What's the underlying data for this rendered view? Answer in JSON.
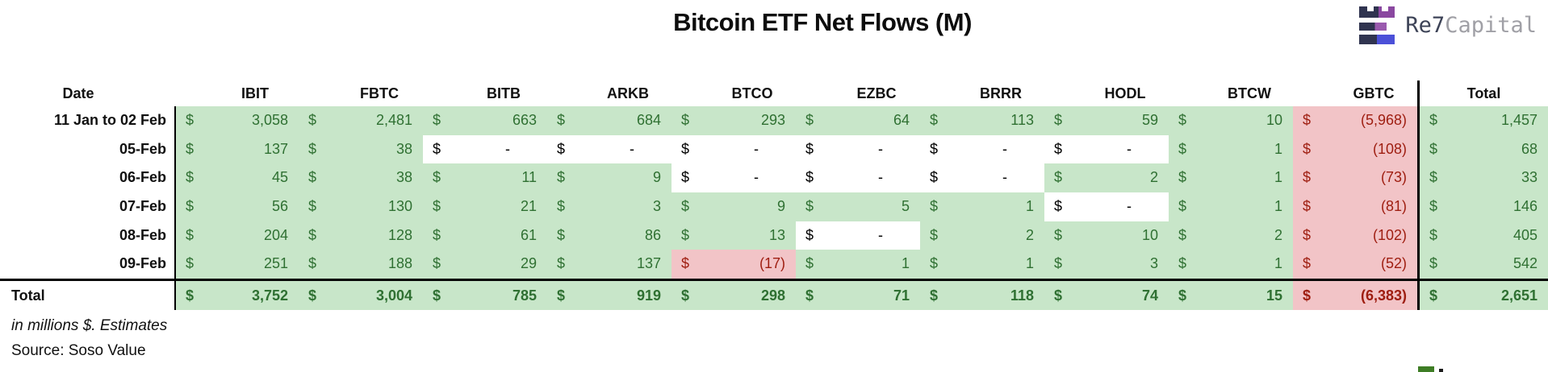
{
  "title": "Bitcoin ETF Net Flows (M)",
  "logo": {
    "text_primary": "Re7",
    "text_secondary": "Capital"
  },
  "chart_data": {
    "type": "table",
    "title": "Bitcoin ETF Net Flows (M)",
    "date_header": "Date",
    "currency": "$",
    "columns": [
      "IBIT",
      "FBTC",
      "BITB",
      "ARKB",
      "BTCO",
      "EZBC",
      "BRRR",
      "HODL",
      "BTCW",
      "GBTC",
      "Total"
    ],
    "rows": [
      {
        "date": "11 Jan to 02 Feb",
        "cells": [
          {
            "value": "3,058",
            "type": "pos"
          },
          {
            "value": "2,481",
            "type": "pos"
          },
          {
            "value": "663",
            "type": "pos"
          },
          {
            "value": "684",
            "type": "pos"
          },
          {
            "value": "293",
            "type": "pos"
          },
          {
            "value": "64",
            "type": "pos"
          },
          {
            "value": "113",
            "type": "pos"
          },
          {
            "value": "59",
            "type": "pos"
          },
          {
            "value": "10",
            "type": "pos"
          },
          {
            "value": "(5,968)",
            "type": "neg"
          },
          {
            "value": "1,457",
            "type": "pos"
          }
        ]
      },
      {
        "date": "05-Feb",
        "cells": [
          {
            "value": "137",
            "type": "pos"
          },
          {
            "value": "38",
            "type": "pos"
          },
          {
            "value": "-",
            "type": "empty"
          },
          {
            "value": "-",
            "type": "empty"
          },
          {
            "value": "-",
            "type": "empty"
          },
          {
            "value": "-",
            "type": "empty"
          },
          {
            "value": "-",
            "type": "empty"
          },
          {
            "value": "-",
            "type": "empty"
          },
          {
            "value": "1",
            "type": "pos"
          },
          {
            "value": "(108)",
            "type": "neg"
          },
          {
            "value": "68",
            "type": "pos"
          }
        ]
      },
      {
        "date": "06-Feb",
        "cells": [
          {
            "value": "45",
            "type": "pos"
          },
          {
            "value": "38",
            "type": "pos"
          },
          {
            "value": "11",
            "type": "pos"
          },
          {
            "value": "9",
            "type": "pos"
          },
          {
            "value": "-",
            "type": "empty"
          },
          {
            "value": "-",
            "type": "empty"
          },
          {
            "value": "-",
            "type": "empty"
          },
          {
            "value": "2",
            "type": "pos"
          },
          {
            "value": "1",
            "type": "pos"
          },
          {
            "value": "(73)",
            "type": "neg"
          },
          {
            "value": "33",
            "type": "pos"
          }
        ]
      },
      {
        "date": "07-Feb",
        "cells": [
          {
            "value": "56",
            "type": "pos"
          },
          {
            "value": "130",
            "type": "pos"
          },
          {
            "value": "21",
            "type": "pos"
          },
          {
            "value": "3",
            "type": "pos"
          },
          {
            "value": "9",
            "type": "pos"
          },
          {
            "value": "5",
            "type": "pos"
          },
          {
            "value": "1",
            "type": "pos"
          },
          {
            "value": "-",
            "type": "empty"
          },
          {
            "value": "1",
            "type": "pos"
          },
          {
            "value": "(81)",
            "type": "neg"
          },
          {
            "value": "146",
            "type": "pos"
          }
        ]
      },
      {
        "date": "08-Feb",
        "cells": [
          {
            "value": "204",
            "type": "pos"
          },
          {
            "value": "128",
            "type": "pos"
          },
          {
            "value": "61",
            "type": "pos"
          },
          {
            "value": "86",
            "type": "pos"
          },
          {
            "value": "13",
            "type": "pos"
          },
          {
            "value": "-",
            "type": "empty"
          },
          {
            "value": "2",
            "type": "pos"
          },
          {
            "value": "10",
            "type": "pos"
          },
          {
            "value": "2",
            "type": "pos"
          },
          {
            "value": "(102)",
            "type": "neg"
          },
          {
            "value": "405",
            "type": "pos"
          }
        ]
      },
      {
        "date": "09-Feb",
        "cells": [
          {
            "value": "251",
            "type": "pos"
          },
          {
            "value": "188",
            "type": "pos"
          },
          {
            "value": "29",
            "type": "pos"
          },
          {
            "value": "137",
            "type": "pos"
          },
          {
            "value": "(17)",
            "type": "neg"
          },
          {
            "value": "1",
            "type": "pos"
          },
          {
            "value": "1",
            "type": "pos"
          },
          {
            "value": "3",
            "type": "pos"
          },
          {
            "value": "1",
            "type": "pos"
          },
          {
            "value": "(52)",
            "type": "neg"
          },
          {
            "value": "542",
            "type": "pos"
          }
        ]
      }
    ],
    "total_row": {
      "label": "Total",
      "cells": [
        {
          "value": "3,752",
          "type": "pos"
        },
        {
          "value": "3,004",
          "type": "pos"
        },
        {
          "value": "785",
          "type": "pos"
        },
        {
          "value": "919",
          "type": "pos"
        },
        {
          "value": "298",
          "type": "pos"
        },
        {
          "value": "71",
          "type": "pos"
        },
        {
          "value": "118",
          "type": "pos"
        },
        {
          "value": "74",
          "type": "pos"
        },
        {
          "value": "15",
          "type": "pos"
        },
        {
          "value": "(6,383)",
          "type": "neg"
        },
        {
          "value": "2,651",
          "type": "pos"
        }
      ]
    }
  },
  "footnotes": {
    "note": "in millions $. Estimates",
    "source": "Source: Soso Value"
  },
  "colors": {
    "positive_bg": "#c8e6c9",
    "positive_text": "#2f7032",
    "negative_bg": "#f2c4c7",
    "negative_text": "#9e1d10",
    "logo_navy": "#303450",
    "logo_purple": "#8a48a0",
    "logo_purple2": "#9a5aae",
    "logo_indigo": "#4b50d8",
    "logo_text_primary": "#3d4357",
    "logo_text_secondary": "#a0a0a6"
  }
}
